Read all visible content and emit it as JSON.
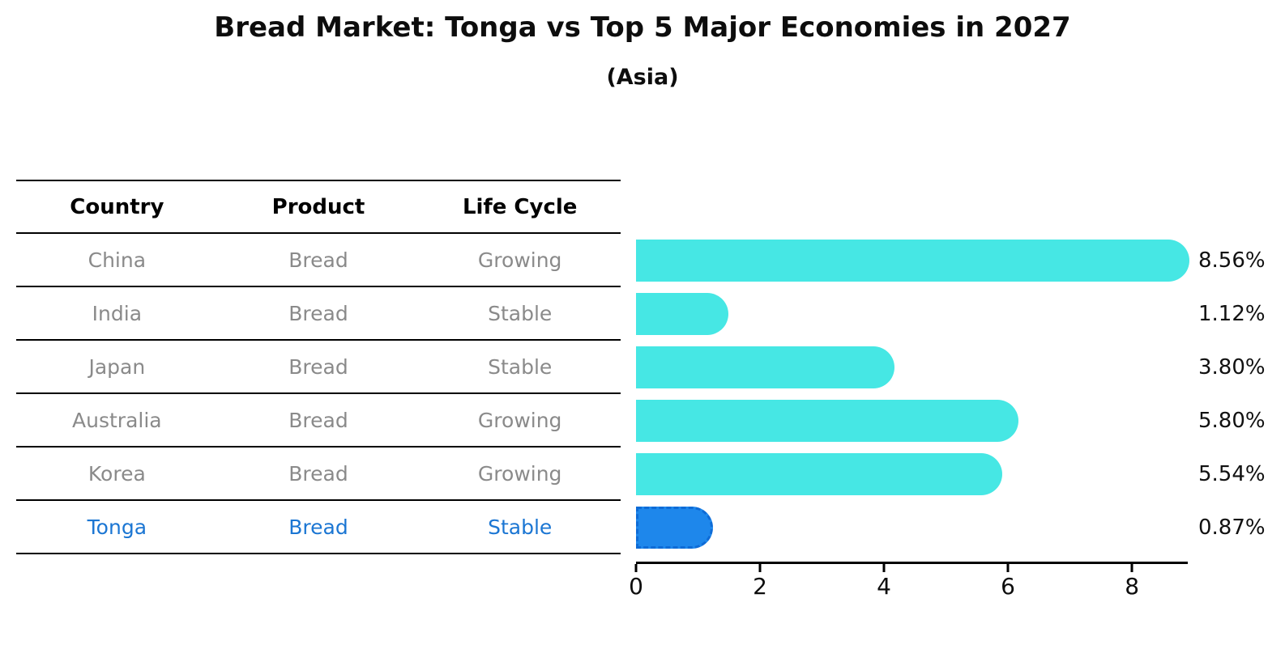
{
  "title": "Bread Market: Tonga vs Top 5 Major Economies in 2027",
  "subtitle": "(Asia)",
  "table": {
    "headers": {
      "country": "Country",
      "product": "Product",
      "life_cycle": "Life Cycle"
    },
    "rows": [
      {
        "country": "China",
        "product": "Bread",
        "life_cycle": "Growing",
        "highlight": false
      },
      {
        "country": "India",
        "product": "Bread",
        "life_cycle": "Stable",
        "highlight": false
      },
      {
        "country": "Japan",
        "product": "Bread",
        "life_cycle": "Stable",
        "highlight": false
      },
      {
        "country": "Australia",
        "product": "Bread",
        "life_cycle": "Growing",
        "highlight": false
      },
      {
        "country": "Korea",
        "product": "Bread",
        "life_cycle": "Growing",
        "highlight": true
      }
    ],
    "highlight_row": {
      "country": "Tonga",
      "product": "Bread",
      "life_cycle": "Stable",
      "highlight": true
    }
  },
  "chart_data": {
    "type": "bar",
    "orientation": "horizontal",
    "title": "Bread Market: Tonga vs Top 5 Major Economies in 2027",
    "subtitle": "(Asia)",
    "categories": [
      "China",
      "India",
      "Japan",
      "Australia",
      "Korea",
      "Tonga"
    ],
    "values": [
      8.56,
      1.12,
      3.8,
      5.8,
      5.54,
      0.87
    ],
    "bar_labels": [
      "8.56%",
      "1.12%",
      "3.80%",
      "5.80%",
      "5.54%",
      "0.87%"
    ],
    "x_ticks": [
      "0",
      "2",
      "4",
      "6",
      "8"
    ],
    "xlim": [
      0,
      8.9
    ],
    "grid": false,
    "legend": "none",
    "bar_color": "#46E7E4",
    "highlight_index": 5,
    "highlight_color": "#1E87EB",
    "highlight_border_color": "#0E6BD6",
    "highlight_border_style": "dashed",
    "axis_color": "#000000",
    "label_color": "#111111"
  }
}
